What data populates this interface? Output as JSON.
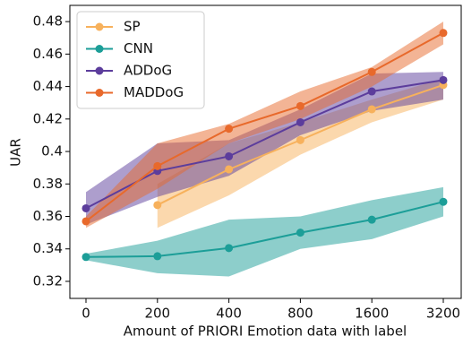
{
  "chart_data": {
    "type": "line",
    "x_label": "Amount of PRIORI Emotion data with label",
    "y_label": "UAR",
    "categories": [
      "0",
      "200",
      "400",
      "800",
      "1600",
      "3200"
    ],
    "ylim": [
      0.3095,
      0.49
    ],
    "yticks": [
      0.32,
      0.34,
      0.36,
      0.38,
      0.4,
      0.42,
      0.44,
      0.46,
      0.48
    ],
    "legend": "upper left",
    "series": [
      {
        "name": "SP",
        "color": "#f7b15c",
        "values": [
          null,
          0.367,
          0.389,
          0.407,
          0.426,
          0.441
        ],
        "lower": [
          null,
          0.353,
          0.373,
          0.398,
          0.418,
          0.432
        ],
        "upper": [
          null,
          0.38,
          0.405,
          0.418,
          0.432,
          0.445
        ]
      },
      {
        "name": "CNN",
        "color": "#1c9e98",
        "values": [
          0.335,
          0.3355,
          0.3405,
          0.35,
          0.358,
          0.369
        ],
        "lower": [
          0.333,
          0.325,
          0.323,
          0.34,
          0.346,
          0.36
        ],
        "upper": [
          0.337,
          0.345,
          0.358,
          0.36,
          0.37,
          0.378
        ]
      },
      {
        "name": "ADDoG",
        "color": "#5c3d9c",
        "values": [
          0.365,
          0.388,
          0.397,
          0.418,
          0.437,
          0.444
        ],
        "lower": [
          0.355,
          0.372,
          0.385,
          0.41,
          0.425,
          0.432
        ],
        "upper": [
          0.375,
          0.405,
          0.407,
          0.426,
          0.448,
          0.449
        ]
      },
      {
        "name": "MADDoG",
        "color": "#e8692b",
        "values": [
          0.357,
          0.391,
          0.414,
          0.428,
          0.449,
          0.473
        ],
        "lower": [
          0.353,
          0.377,
          0.405,
          0.42,
          0.44,
          0.466
        ],
        "upper": [
          0.36,
          0.405,
          0.417,
          0.437,
          0.452,
          0.48
        ]
      }
    ]
  }
}
